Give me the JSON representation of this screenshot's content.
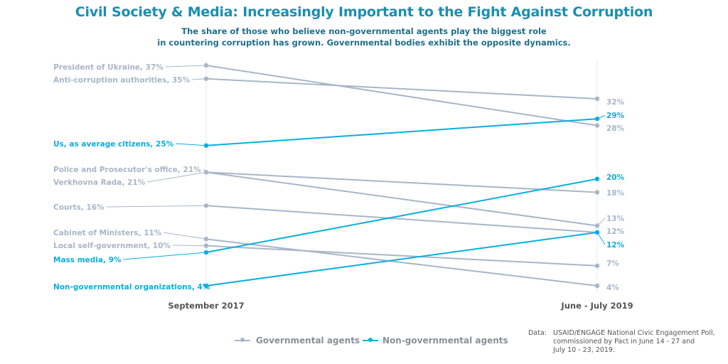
{
  "title": "Civil Society & Media: Increasingly Important to the Fight Against Corruption",
  "subtitle_lines": [
    "The share of those who believe non-governmental agents play the biggest role",
    "in countering corruption has grown. Governmental bodies exhibit the opposite dynamics."
  ],
  "colors": {
    "governmental": "#a9b6c8",
    "non_governmental": "#0aaee0",
    "title": "#1a8fb0",
    "axis_label": "#555555"
  },
  "legend": {
    "governmental": "Governmental agents",
    "non_governmental": "Non-governmental agents"
  },
  "source": {
    "label": "Data:",
    "lines": [
      "USAID/ENGAGE National Civic Engagement Poll,",
      "commissioned by Pact in June 14 - 27 and",
      "July 10 - 23, 2019."
    ]
  },
  "chart_data": {
    "type": "line",
    "subtype": "slope",
    "x": [
      "September 2017",
      "June - July 2019"
    ],
    "ylim": [
      0,
      40
    ],
    "series": [
      {
        "name": "President of Ukraine",
        "group": "governmental",
        "values": [
          37,
          28
        ],
        "left_label": "President of Ukraine, 37%",
        "right_label": "28%"
      },
      {
        "name": "Anti-corruption authorities",
        "group": "governmental",
        "values": [
          35,
          32
        ],
        "left_label": "Anti-corruption authorities, 35%",
        "right_label": "32%"
      },
      {
        "name": "Us, as average citizens",
        "group": "non_governmental",
        "values": [
          25,
          29
        ],
        "left_label": "Us, as average citizens, 25%",
        "right_label": "29%"
      },
      {
        "name": "Police and Prosecutor's office",
        "group": "governmental",
        "values": [
          21,
          18
        ],
        "left_label": "Police and Prosecutor's office, 21%",
        "right_label": "18%"
      },
      {
        "name": "Verkhovna Rada",
        "group": "governmental",
        "values": [
          21,
          13
        ],
        "left_label": "Verkhovna Rada, 21%",
        "right_label": "13%"
      },
      {
        "name": "Courts",
        "group": "governmental",
        "values": [
          16,
          12
        ],
        "left_label": "Courts, 16%",
        "right_label": "12%"
      },
      {
        "name": "Cabinet of Ministers",
        "group": "governmental",
        "values": [
          11,
          4
        ],
        "left_label": "Cabinet of Ministers, 11%",
        "right_label": "4%"
      },
      {
        "name": "Local self-government",
        "group": "governmental",
        "values": [
          10,
          7
        ],
        "left_label": "Local self-government, 10%",
        "right_label": "7%"
      },
      {
        "name": "Mass media",
        "group": "non_governmental",
        "values": [
          9,
          20
        ],
        "left_label": "Mass media, 9%",
        "right_label": "20%"
      },
      {
        "name": "Non-governmental organizations",
        "group": "non_governmental",
        "values": [
          4,
          12
        ],
        "left_label": "Non-governmental organizations, 4%",
        "right_label": "12%"
      }
    ]
  }
}
